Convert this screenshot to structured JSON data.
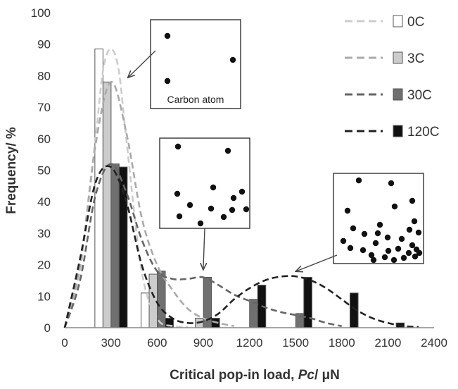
{
  "chart_data": {
    "type": "bar",
    "title": "",
    "xlabel": "Critical pop-in load, Pc/ μN",
    "xlabel_parts": [
      "Critical pop-in load, ",
      "Pc",
      "/ μN"
    ],
    "ylabel": "Frequency/ %",
    "xlim": [
      0,
      2400
    ],
    "ylim": [
      0,
      100
    ],
    "xticks": [
      "0",
      "300",
      "600",
      "900",
      "1200",
      "1500",
      "1800",
      "2100",
      "2400"
    ],
    "yticks": [
      "0",
      "10",
      "20",
      "30",
      "40",
      "50",
      "60",
      "70",
      "80",
      "90",
      "100"
    ],
    "grid": false,
    "legend_position": "top-right",
    "series": [
      {
        "name": "0C",
        "color": "#ffffff",
        "curve_color": "#cccccc",
        "bars": [
          {
            "x": 300,
            "y": 88.5
          },
          {
            "x": 600,
            "y": 11
          }
        ],
        "curve": [
          [
            0,
            0
          ],
          [
            100,
            18
          ],
          [
            200,
            60
          ],
          [
            250,
            82
          ],
          [
            300,
            88.5
          ],
          [
            350,
            82
          ],
          [
            400,
            60
          ],
          [
            500,
            18
          ],
          [
            600,
            3
          ],
          [
            700,
            0.5
          ],
          [
            800,
            0.2
          ]
        ]
      },
      {
        "name": "3C",
        "color": "#cccccc",
        "curve_color": "#aaaaaa",
        "bars": [
          {
            "x": 300,
            "y": 78
          },
          {
            "x": 600,
            "y": 17
          },
          {
            "x": 900,
            "y": 3
          }
        ],
        "curve": [
          [
            0,
            0
          ],
          [
            100,
            20
          ],
          [
            200,
            58
          ],
          [
            300,
            78
          ],
          [
            400,
            62
          ],
          [
            500,
            35
          ],
          [
            600,
            20
          ],
          [
            700,
            12
          ],
          [
            800,
            6
          ],
          [
            900,
            3
          ],
          [
            1000,
            1.5
          ],
          [
            1100,
            0.5
          ]
        ]
      },
      {
        "name": "30C",
        "color": "#707070",
        "curve_color": "#666666",
        "bars": [
          {
            "x": 300,
            "y": 52
          },
          {
            "x": 600,
            "y": 18
          },
          {
            "x": 900,
            "y": 16
          },
          {
            "x": 1200,
            "y": 9
          },
          {
            "x": 1500,
            "y": 4.5
          }
        ],
        "curve": [
          [
            0,
            0
          ],
          [
            100,
            15
          ],
          [
            200,
            42
          ],
          [
            300,
            52
          ],
          [
            400,
            43
          ],
          [
            500,
            28
          ],
          [
            600,
            18
          ],
          [
            700,
            15.5
          ],
          [
            800,
            15.5
          ],
          [
            900,
            16
          ],
          [
            1000,
            13.5
          ],
          [
            1100,
            10.5
          ],
          [
            1200,
            8.5
          ],
          [
            1300,
            6.5
          ],
          [
            1400,
            5
          ],
          [
            1500,
            4
          ],
          [
            1600,
            3
          ],
          [
            1700,
            1.5
          ],
          [
            1800,
            0.5
          ]
        ]
      },
      {
        "name": "120C",
        "color": "#111111",
        "curve_color": "#222222",
        "bars": [
          {
            "x": 300,
            "y": 51
          },
          {
            "x": 600,
            "y": 3
          },
          {
            "x": 900,
            "y": 3
          },
          {
            "x": 1200,
            "y": 13.5
          },
          {
            "x": 1500,
            "y": 16
          },
          {
            "x": 1800,
            "y": 11
          },
          {
            "x": 2100,
            "y": 1.5
          }
        ],
        "curve": [
          [
            0,
            0
          ],
          [
            100,
            22
          ],
          [
            200,
            46
          ],
          [
            300,
            51
          ],
          [
            400,
            40
          ],
          [
            500,
            20
          ],
          [
            600,
            8
          ],
          [
            700,
            3
          ],
          [
            800,
            1.5
          ],
          [
            900,
            2
          ],
          [
            1000,
            4.5
          ],
          [
            1100,
            9
          ],
          [
            1200,
            12.5
          ],
          [
            1300,
            15
          ],
          [
            1400,
            16.2
          ],
          [
            1500,
            16.3
          ],
          [
            1600,
            15
          ],
          [
            1700,
            12.5
          ],
          [
            1800,
            9
          ],
          [
            1900,
            5.5
          ],
          [
            2000,
            3
          ],
          [
            2100,
            1.5
          ],
          [
            2200,
            0.5
          ],
          [
            2300,
            0.2
          ]
        ]
      }
    ],
    "annotations": [
      {
        "id": "inset-1",
        "label": "Carbon atom",
        "points": 3,
        "target": [
          300,
          78
        ]
      },
      {
        "id": "inset-2",
        "label": "",
        "points": 13,
        "target": [
          900,
          17
        ]
      },
      {
        "id": "inset-3",
        "label": "",
        "points": 30,
        "target": [
          1500,
          16.5
        ]
      }
    ]
  }
}
